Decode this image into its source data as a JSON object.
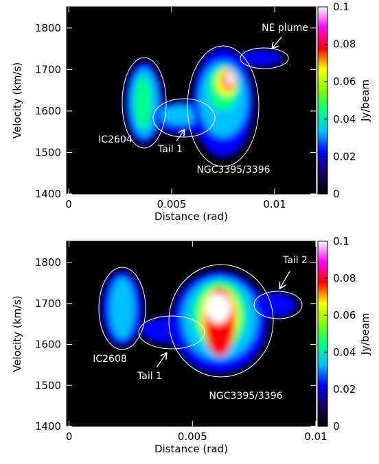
{
  "chart_data": [
    {
      "type": "heatmap",
      "xlabel": "Distance (rad)",
      "ylabel": "Velocity (km/s)",
      "colorbar_label": "Jy/beam",
      "xlim": [
        -0.0001,
        0.012
      ],
      "xticks": [
        0,
        0.005,
        0.01
      ],
      "ylim": [
        1400,
        1851
      ],
      "yticks": [
        1400,
        1500,
        1600,
        1700,
        1800
      ],
      "zlim": [
        0,
        0.1
      ],
      "zticks": [
        0,
        0.02,
        0.04,
        0.06,
        0.08,
        0.1
      ],
      "colormap": [
        "#000000",
        "#1a0060",
        "#0000ff",
        "#00c0ff",
        "#00ff80",
        "#80ff00",
        "#ffff00",
        "#ff0000",
        "#ff00ff",
        "#ffffff"
      ],
      "annotations": [
        "NE plume",
        "IC2604",
        "Tail 1",
        "NGC3395/3396"
      ]
    },
    {
      "type": "heatmap",
      "xlabel": "Distance (rad)",
      "ylabel": "Velocity (km/s)",
      "colorbar_label": "Jy/beam",
      "xlim": [
        -0.0001,
        0.01
      ],
      "xticks": [
        0,
        0.005,
        0.01
      ],
      "ylim": [
        1400,
        1852
      ],
      "yticks": [
        1400,
        1500,
        1600,
        1700,
        1800
      ],
      "zlim": [
        0,
        0.1
      ],
      "zticks": [
        0,
        0.02,
        0.04,
        0.06,
        0.08,
        0.1
      ],
      "colormap": [
        "#000000",
        "#1a0060",
        "#0000ff",
        "#00c0ff",
        "#00ff80",
        "#80ff00",
        "#ffff00",
        "#ff0000",
        "#ff00ff",
        "#ffffff"
      ],
      "annotations": [
        "Tail 2",
        "IC2608",
        "Tail 1",
        "NGC3395/3396"
      ]
    }
  ]
}
